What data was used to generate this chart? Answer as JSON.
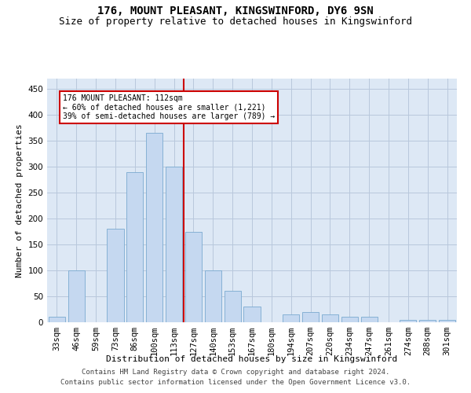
{
  "title": "176, MOUNT PLEASANT, KINGSWINFORD, DY6 9SN",
  "subtitle": "Size of property relative to detached houses in Kingswinford",
  "xlabel": "Distribution of detached houses by size in Kingswinford",
  "ylabel": "Number of detached properties",
  "categories": [
    "33sqm",
    "46sqm",
    "59sqm",
    "73sqm",
    "86sqm",
    "100sqm",
    "113sqm",
    "127sqm",
    "140sqm",
    "153sqm",
    "167sqm",
    "180sqm",
    "194sqm",
    "207sqm",
    "220sqm",
    "234sqm",
    "247sqm",
    "261sqm",
    "274sqm",
    "288sqm",
    "301sqm"
  ],
  "values": [
    10,
    100,
    0,
    180,
    290,
    365,
    300,
    175,
    100,
    60,
    30,
    0,
    15,
    20,
    15,
    10,
    10,
    0,
    5,
    5,
    5
  ],
  "bar_color": "#c5d8f0",
  "bar_edge_color": "#7aaad0",
  "vline_index": 6.5,
  "vline_color": "#cc0000",
  "annotation_text": "176 MOUNT PLEASANT: 112sqm\n← 60% of detached houses are smaller (1,221)\n39% of semi-detached houses are larger (789) →",
  "annotation_box_color": "#ffffff",
  "annotation_box_edge": "#cc0000",
  "footer_line1": "Contains HM Land Registry data © Crown copyright and database right 2024.",
  "footer_line2": "Contains public sector information licensed under the Open Government Licence v3.0.",
  "ylim": [
    0,
    470
  ],
  "yticks": [
    0,
    50,
    100,
    150,
    200,
    250,
    300,
    350,
    400,
    450
  ],
  "title_fontsize": 10,
  "subtitle_fontsize": 9,
  "label_fontsize": 8,
  "tick_fontsize": 7.5,
  "footer_fontsize": 6.5,
  "background_color": "#ffffff",
  "plot_bg_color": "#dde8f5",
  "grid_color": "#b8c8dc"
}
